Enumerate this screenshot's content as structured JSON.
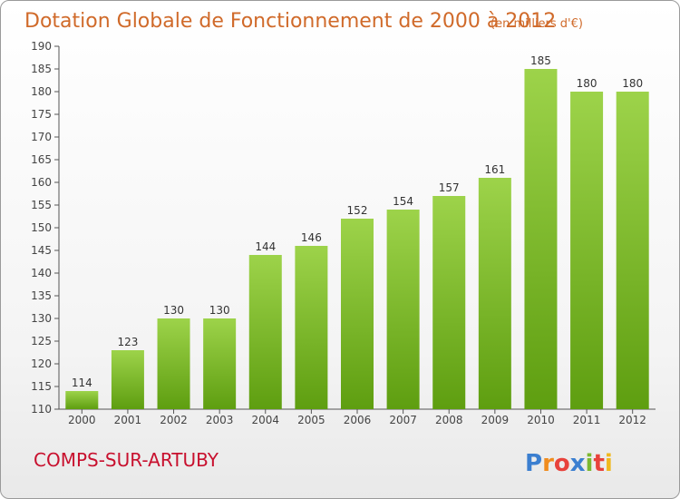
{
  "chart_data": {
    "type": "bar",
    "title": "Dotation Globale de Fonctionnement de 2000 à 2012",
    "unit": "(en milliers d'€)",
    "categories": [
      "2000",
      "2001",
      "2002",
      "2003",
      "2004",
      "2005",
      "2006",
      "2007",
      "2008",
      "2009",
      "2010",
      "2011",
      "2012"
    ],
    "values": [
      114,
      123,
      130,
      130,
      144,
      146,
      152,
      154,
      157,
      161,
      185,
      180,
      180
    ],
    "ylim": [
      110,
      190
    ],
    "yticks": [
      110,
      115,
      120,
      125,
      130,
      135,
      140,
      145,
      150,
      155,
      160,
      165,
      170,
      175,
      180,
      185,
      190
    ],
    "xlabel": "",
    "ylabel": "",
    "grid": false
  },
  "commune": "COMPS-SUR-ARTUBY",
  "logo": {
    "letters": [
      "P",
      "r",
      "o",
      "x",
      "i",
      "t",
      "i"
    ],
    "colors": [
      "#3b7fd0",
      "#f08c1e",
      "#e8423b",
      "#3b7fd0",
      "#7cb82f",
      "#e8423b",
      "#f0b81e"
    ]
  },
  "colors": {
    "bar_top": "#9dd34a",
    "bar_bottom": "#5e9e10",
    "title": "#d06a2a",
    "commune": "#c8102e"
  }
}
